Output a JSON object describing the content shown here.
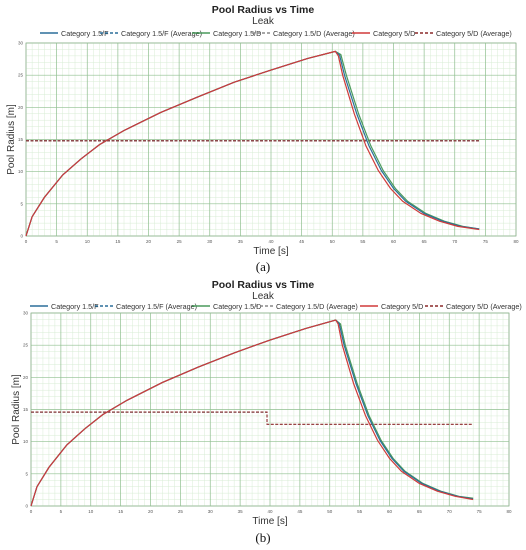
{
  "chart_data": [
    {
      "type": "line",
      "panel_label": "(a)",
      "title": "Pool Radius vs Time",
      "subtitle": "Leak",
      "xlabel": "Time [s]",
      "ylabel": "Pool Radius [m]",
      "xlim": [
        0,
        80
      ],
      "ylim": [
        0,
        30
      ],
      "grid": true,
      "legend_position": "top",
      "x_ticks": [
        "0",
        "5",
        "10",
        "15",
        "20",
        "25",
        "30",
        "35",
        "40",
        "45",
        "50",
        "55",
        "60",
        "65",
        "70",
        "75",
        "80"
      ],
      "y_ticks": [
        "0",
        "5",
        "10",
        "15",
        "20",
        "25",
        "30"
      ],
      "series": [
        {
          "name": "Category 1.5/F",
          "color": "#2b6f9a",
          "dash": "solid",
          "points": [
            [
              0,
              0
            ],
            [
              1,
              3
            ],
            [
              3,
              6
            ],
            [
              6,
              9.5
            ],
            [
              9,
              12
            ],
            [
              12,
              14.2
            ],
            [
              16,
              16.4
            ],
            [
              22,
              19.2
            ],
            [
              28,
              21.6
            ],
            [
              34,
              23.9
            ],
            [
              40,
              25.8
            ],
            [
              46,
              27.6
            ],
            [
              50.5,
              28.7
            ],
            [
              51.2,
              28.1
            ],
            [
              52,
              25
            ],
            [
              54,
              19
            ],
            [
              56,
              14
            ],
            [
              58,
              10.2
            ],
            [
              60,
              7.4
            ],
            [
              62,
              5.4
            ],
            [
              65,
              3.5
            ],
            [
              68,
              2.3
            ],
            [
              71,
              1.5
            ],
            [
              74,
              1.1
            ]
          ]
        },
        {
          "name": "Category 1.5/F (Average)",
          "color": "#2b6f9a",
          "dash": "dashed",
          "points": [
            [
              0,
              14.8
            ],
            [
              74,
              14.8
            ]
          ]
        },
        {
          "name": "Category 1.5/D",
          "color": "#4a9a5c",
          "dash": "solid",
          "points": [
            [
              0,
              0
            ],
            [
              1,
              3
            ],
            [
              3,
              6
            ],
            [
              6,
              9.5
            ],
            [
              9,
              12
            ],
            [
              12,
              14.2
            ],
            [
              16,
              16.4
            ],
            [
              22,
              19.2
            ],
            [
              28,
              21.6
            ],
            [
              34,
              23.9
            ],
            [
              40,
              25.8
            ],
            [
              46,
              27.6
            ],
            [
              50.5,
              28.7
            ],
            [
              51.4,
              28.2
            ],
            [
              52.3,
              25
            ],
            [
              54.3,
              19
            ],
            [
              56.3,
              14
            ],
            [
              58.3,
              10.2
            ],
            [
              60.3,
              7.4
            ],
            [
              62.3,
              5.4
            ],
            [
              65.3,
              3.5
            ],
            [
              68.3,
              2.3
            ],
            [
              71.3,
              1.5
            ],
            [
              74,
              1.1
            ]
          ]
        },
        {
          "name": "Category 1.5/D (Average)",
          "color": "#888888",
          "dash": "dashed",
          "points": [
            [
              0,
              14.8
            ],
            [
              74,
              14.8
            ]
          ]
        },
        {
          "name": "Category 5/D",
          "color": "#d03a3a",
          "dash": "solid",
          "points": [
            [
              0,
              0
            ],
            [
              1,
              3
            ],
            [
              3,
              6
            ],
            [
              6,
              9.5
            ],
            [
              9,
              12
            ],
            [
              12,
              14.2
            ],
            [
              16,
              16.4
            ],
            [
              22,
              19.2
            ],
            [
              28,
              21.6
            ],
            [
              34,
              23.9
            ],
            [
              40,
              25.8
            ],
            [
              46,
              27.6
            ],
            [
              50.5,
              28.7
            ],
            [
              51,
              28
            ],
            [
              51.7,
              25
            ],
            [
              53.6,
              19
            ],
            [
              55.5,
              14
            ],
            [
              57.5,
              10.2
            ],
            [
              59.5,
              7.4
            ],
            [
              61.5,
              5.4
            ],
            [
              64.5,
              3.5
            ],
            [
              67.5,
              2.3
            ],
            [
              70.5,
              1.5
            ],
            [
              74,
              1.0
            ]
          ]
        },
        {
          "name": "Category 5/D (Average)",
          "color": "#8b2a2a",
          "dash": "dashed",
          "points": [
            [
              0,
              14.8
            ],
            [
              74,
              14.8
            ]
          ]
        }
      ]
    },
    {
      "type": "line",
      "panel_label": "(b)",
      "title": "Pool Radius vs Time",
      "subtitle": "Leak",
      "xlabel": "Time [s]",
      "ylabel": "Pool Radius [m]",
      "xlim": [
        0,
        80
      ],
      "ylim": [
        0,
        30
      ],
      "grid": true,
      "legend_position": "top",
      "x_ticks": [
        "0",
        "5",
        "10",
        "15",
        "20",
        "25",
        "30",
        "35",
        "40",
        "45",
        "50",
        "55",
        "60",
        "65",
        "70",
        "75",
        "80"
      ],
      "y_ticks": [
        "0",
        "5",
        "10",
        "15",
        "20",
        "25",
        "30"
      ],
      "series": [
        {
          "name": "Category 1.5/F",
          "color": "#2b6f9a",
          "dash": "solid",
          "points": [
            [
              0,
              0
            ],
            [
              1,
              3
            ],
            [
              3,
              6
            ],
            [
              6,
              9.5
            ],
            [
              9,
              12
            ],
            [
              12,
              14.2
            ],
            [
              16,
              16.4
            ],
            [
              22,
              19.2
            ],
            [
              28,
              21.6
            ],
            [
              34,
              23.8
            ],
            [
              40,
              25.8
            ],
            [
              46,
              27.6
            ],
            [
              51,
              28.9
            ],
            [
              51.6,
              28.3
            ],
            [
              52.4,
              25
            ],
            [
              54.4,
              19
            ],
            [
              56.4,
              14
            ],
            [
              58.4,
              10.2
            ],
            [
              60.4,
              7.4
            ],
            [
              62.4,
              5.4
            ],
            [
              65.4,
              3.5
            ],
            [
              68.4,
              2.3
            ],
            [
              71.4,
              1.5
            ],
            [
              74,
              1.1
            ]
          ]
        },
        {
          "name": "Category 1.5/F (Average)",
          "color": "#2b6f9a",
          "dash": "dashed",
          "points": [
            [
              0,
              14.6
            ],
            [
              39.5,
              14.6
            ]
          ]
        },
        {
          "name": "Category 1.5/D",
          "color": "#4a9a5c",
          "dash": "solid",
          "points": [
            [
              0,
              0
            ],
            [
              1,
              3
            ],
            [
              3,
              6
            ],
            [
              6,
              9.5
            ],
            [
              9,
              12
            ],
            [
              12,
              14.2
            ],
            [
              16,
              16.4
            ],
            [
              22,
              19.2
            ],
            [
              28,
              21.6
            ],
            [
              34,
              23.8
            ],
            [
              40,
              25.8
            ],
            [
              46,
              27.6
            ],
            [
              51,
              28.9
            ],
            [
              51.8,
              28.3
            ],
            [
              52.6,
              25
            ],
            [
              54.6,
              19
            ],
            [
              56.6,
              14
            ],
            [
              58.6,
              10.2
            ],
            [
              60.6,
              7.4
            ],
            [
              62.6,
              5.4
            ],
            [
              65.6,
              3.5
            ],
            [
              68.6,
              2.3
            ],
            [
              71.6,
              1.5
            ],
            [
              74,
              1.2
            ]
          ]
        },
        {
          "name": "Category 1.5/D (Average)",
          "color": "#888888",
          "dash": "dashed",
          "points": [
            [
              0,
              14.6
            ],
            [
              39.5,
              14.6
            ]
          ]
        },
        {
          "name": "Category 5/D",
          "color": "#d03a3a",
          "dash": "solid",
          "points": [
            [
              0,
              0
            ],
            [
              1,
              3
            ],
            [
              3,
              6
            ],
            [
              6,
              9.5
            ],
            [
              9,
              12
            ],
            [
              12,
              14.2
            ],
            [
              16,
              16.4
            ],
            [
              22,
              19.2
            ],
            [
              28,
              21.6
            ],
            [
              34,
              23.8
            ],
            [
              40,
              25.8
            ],
            [
              46,
              27.6
            ],
            [
              51,
              28.9
            ],
            [
              51.4,
              28.3
            ],
            [
              52.1,
              25
            ],
            [
              54,
              19
            ],
            [
              56,
              14
            ],
            [
              58,
              10.2
            ],
            [
              60,
              7.4
            ],
            [
              62,
              5.4
            ],
            [
              65,
              3.5
            ],
            [
              68,
              2.3
            ],
            [
              71,
              1.5
            ],
            [
              74,
              1.0
            ]
          ]
        },
        {
          "name": "Category 5/D (Average)",
          "color": "#8b2a2a",
          "dash": "dashed",
          "points": [
            [
              0,
              14.6
            ],
            [
              39.5,
              14.6
            ],
            [
              39.5,
              12.7
            ],
            [
              74,
              12.7
            ]
          ]
        }
      ]
    }
  ]
}
